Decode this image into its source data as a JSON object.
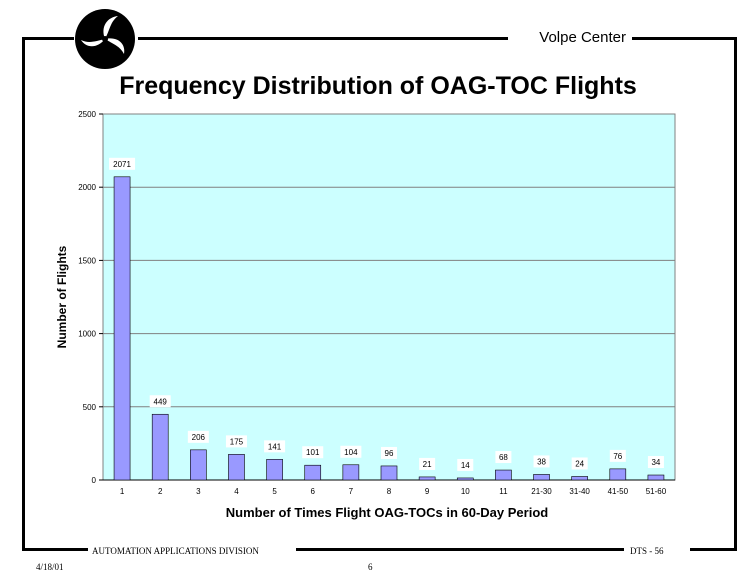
{
  "header": {
    "org": "Volpe Center"
  },
  "footer": {
    "division": "AUTOMATION APPLICATIONS DIVISION",
    "date": "4/18/01",
    "page": "6",
    "code": "DTS - 56"
  },
  "colors": {
    "plot_bg": "#ccffff",
    "bar": "#9999ff",
    "grid": "#808080"
  },
  "chart_data": {
    "type": "bar",
    "title": "Frequency Distribution of OAG-TOC Flights",
    "xlabel": "Number of Times Flight OAG-TOCs in 60-Day Period",
    "ylabel": "Number of Flights",
    "ylim": [
      0,
      2500
    ],
    "yticks": [
      0,
      500,
      1000,
      1500,
      2000,
      2500
    ],
    "grid": true,
    "categories": [
      "1",
      "2",
      "3",
      "4",
      "5",
      "6",
      "7",
      "8",
      "9",
      "10",
      "11",
      "21-30",
      "31-40",
      "41-50",
      "51-60"
    ],
    "values": [
      2071,
      449,
      206,
      175,
      141,
      101,
      104,
      96,
      21,
      14,
      68,
      38,
      24,
      76,
      34
    ]
  }
}
